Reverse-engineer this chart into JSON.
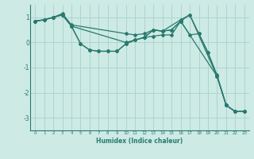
{
  "xlabel": "Humidex (Indice chaleur)",
  "ylabel": "",
  "bg_color": "#cdeae5",
  "grid_color": "#aed4cf",
  "line_color": "#2a7a6e",
  "xlim": [
    -0.5,
    23.5
  ],
  "ylim": [
    -3.5,
    1.5
  ],
  "yticks": [
    -3,
    -2,
    -1,
    0,
    1
  ],
  "xticks": [
    0,
    1,
    2,
    3,
    4,
    5,
    6,
    7,
    8,
    9,
    10,
    11,
    12,
    13,
    14,
    15,
    16,
    17,
    18,
    19,
    20,
    21,
    22,
    23
  ],
  "lines": [
    {
      "x": [
        0,
        1,
        2,
        3,
        4,
        10,
        11,
        12,
        13,
        14,
        16,
        17,
        18,
        19,
        20,
        21,
        22,
        23
      ],
      "y": [
        0.85,
        0.9,
        1.0,
        1.15,
        0.7,
        0.35,
        0.3,
        0.35,
        0.5,
        0.45,
        0.9,
        1.1,
        0.35,
        -0.4,
        -1.3,
        -2.5,
        -2.75,
        -2.75
      ]
    },
    {
      "x": [
        0,
        1,
        2,
        3,
        4,
        5,
        6,
        7,
        8,
        9,
        10,
        11,
        12,
        13,
        14,
        15,
        16,
        20,
        21,
        22,
        23
      ],
      "y": [
        0.85,
        0.9,
        1.0,
        1.1,
        0.65,
        -0.05,
        -0.3,
        -0.35,
        -0.35,
        -0.35,
        -0.05,
        0.1,
        0.2,
        0.25,
        0.3,
        0.3,
        0.85,
        -1.35,
        -2.5,
        -2.75,
        -2.75
      ]
    },
    {
      "x": [
        0,
        1,
        2,
        3,
        4,
        10,
        11,
        12,
        13,
        14,
        15,
        16,
        17,
        20,
        21,
        22,
        23
      ],
      "y": [
        0.85,
        0.9,
        1.0,
        1.1,
        0.65,
        0.0,
        0.1,
        0.2,
        0.5,
        0.45,
        0.5,
        0.85,
        1.1,
        -1.35,
        -2.5,
        -2.75,
        -2.75
      ]
    },
    {
      "x": [
        0,
        1,
        2,
        3,
        4,
        5,
        6,
        7,
        8,
        9,
        10,
        11,
        12,
        13,
        14,
        15,
        16,
        17,
        18,
        19,
        20,
        21,
        22,
        23
      ],
      "y": [
        0.85,
        0.9,
        1.0,
        1.1,
        0.65,
        -0.05,
        -0.3,
        -0.35,
        -0.35,
        -0.35,
        -0.05,
        0.1,
        0.2,
        0.5,
        0.45,
        0.5,
        0.85,
        0.3,
        0.35,
        -0.4,
        -1.35,
        -2.5,
        -2.75,
        -2.75
      ]
    }
  ]
}
